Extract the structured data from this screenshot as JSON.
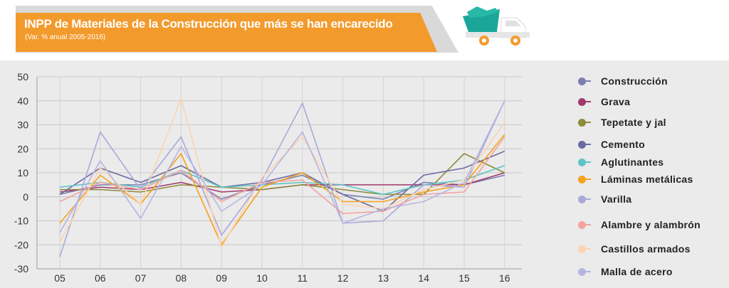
{
  "header": {
    "title": "INPP de Materiales de la Construcción que más se han encarecido",
    "subtitle": "(Var. % anual 2005-2016)",
    "icon": "dump-truck-icon",
    "colors": {
      "accent": "#f39a2c",
      "truck_body": "#1aa79a",
      "truck_wheels": "#f39a2c"
    }
  },
  "chart_data": {
    "type": "line",
    "categories": [
      "05",
      "06",
      "07",
      "08",
      "09",
      "10",
      "11",
      "12",
      "13",
      "14",
      "15",
      "16"
    ],
    "ylim": [
      -30,
      50
    ],
    "yticks": [
      50,
      40,
      30,
      20,
      10,
      0,
      -10,
      -20,
      -30
    ],
    "grid": true,
    "legend_position": "right",
    "series": [
      {
        "name": "Construcción",
        "color": "#7b7fb0",
        "values": [
          1,
          5,
          5,
          10,
          -1,
          5,
          9,
          1,
          -1,
          6,
          5,
          9
        ]
      },
      {
        "name": "Grava",
        "color": "#a03a6e",
        "values": [
          2,
          4,
          3,
          6,
          2,
          3,
          5,
          5,
          5,
          5,
          5,
          10
        ]
      },
      {
        "name": "Tepetate y jal",
        "color": "#8c8c3a",
        "values": [
          3,
          3,
          2,
          5,
          4,
          3,
          5,
          3,
          1,
          1,
          18,
          10
        ]
      },
      {
        "name": "Cemento",
        "color": "#6b6ba3",
        "values": [
          1,
          12,
          6,
          13,
          4,
          6,
          10,
          1,
          -6,
          9,
          12,
          19
        ]
      },
      {
        "name": "Aglutinantes",
        "color": "#5cc4c4",
        "values": [
          4,
          6,
          4,
          11,
          4,
          5,
          6,
          5,
          1,
          5,
          7,
          13
        ]
      },
      {
        "name": "Láminas metálicas",
        "color": "#f5a31a",
        "values": [
          -11,
          9,
          -3,
          18,
          -20,
          4,
          10,
          -2,
          -2,
          2,
          5,
          26
        ]
      },
      {
        "name": "Varilla",
        "color": "#a9a9d9",
        "values": [
          -25,
          27,
          3,
          25,
          -16,
          7,
          39,
          -11,
          -10,
          5,
          4,
          40
        ]
      },
      {
        "name": "Alambre y alambrón",
        "color": "#f4a3a0",
        "values": [
          -2,
          6,
          3,
          11,
          -2,
          6,
          7,
          -7,
          -6,
          1,
          2,
          25
        ]
      },
      {
        "name": "Castillos armados",
        "color": "#fdd3b0",
        "values": [
          -19,
          12,
          -3,
          41,
          -21,
          8,
          25,
          -3,
          -5,
          3,
          7,
          31
        ]
      },
      {
        "name": "Malla de acero",
        "color": "#b5b5e3",
        "values": [
          -15,
          15,
          -9,
          21,
          -6,
          5,
          27,
          -11,
          -5,
          -2,
          6,
          40
        ]
      }
    ]
  }
}
